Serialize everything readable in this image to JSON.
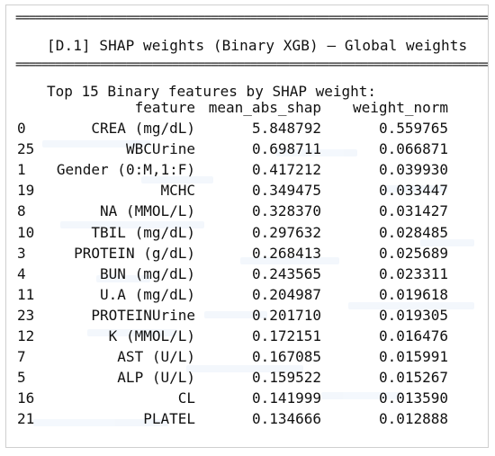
{
  "rule_top": "================================================================================",
  "rule_bottom": "================================================================================",
  "title": "[D.1] SHAP weights (Binary XGB) — Global weights",
  "caption": "Top 15 Binary features by SHAP weight:",
  "table": {
    "columns": [
      "",
      "feature",
      "mean_abs_shap",
      "weight_norm"
    ],
    "rows": [
      {
        "index": "0",
        "feature": "CREA (mg/dL)",
        "mean_abs_shap": "5.848792",
        "weight_norm": "0.559765"
      },
      {
        "index": "25",
        "feature": "WBCUrine",
        "mean_abs_shap": "0.698711",
        "weight_norm": "0.066871"
      },
      {
        "index": "1",
        "feature": "Gender (0:M,1:F)",
        "mean_abs_shap": "0.417212",
        "weight_norm": "0.039930"
      },
      {
        "index": "19",
        "feature": "MCHC",
        "mean_abs_shap": "0.349475",
        "weight_norm": "0.033447"
      },
      {
        "index": "8",
        "feature": "NA (MMOL/L)",
        "mean_abs_shap": "0.328370",
        "weight_norm": "0.031427"
      },
      {
        "index": "10",
        "feature": "TBIL (mg/dL)",
        "mean_abs_shap": "0.297632",
        "weight_norm": "0.028485"
      },
      {
        "index": "3",
        "feature": "PROTEIN (g/dL)",
        "mean_abs_shap": "0.268413",
        "weight_norm": "0.025689"
      },
      {
        "index": "4",
        "feature": "BUN (mg/dL)",
        "mean_abs_shap": "0.243565",
        "weight_norm": "0.023311"
      },
      {
        "index": "11",
        "feature": "U.A (mg/dL)",
        "mean_abs_shap": "0.204987",
        "weight_norm": "0.019618"
      },
      {
        "index": "23",
        "feature": "PROTEINUrine",
        "mean_abs_shap": "0.201710",
        "weight_norm": "0.019305"
      },
      {
        "index": "12",
        "feature": "K (MMOL/L)",
        "mean_abs_shap": "0.172151",
        "weight_norm": "0.016476"
      },
      {
        "index": "7",
        "feature": "AST (U/L)",
        "mean_abs_shap": "0.167085",
        "weight_norm": "0.015991"
      },
      {
        "index": "5",
        "feature": "ALP (U/L)",
        "mean_abs_shap": "0.159522",
        "weight_norm": "0.015267"
      },
      {
        "index": "16",
        "feature": "CL",
        "mean_abs_shap": "0.141999",
        "weight_norm": "0.013590"
      },
      {
        "index": "21",
        "feature": "PLATEL",
        "mean_abs_shap": "0.134666",
        "weight_norm": "0.012888"
      }
    ]
  }
}
